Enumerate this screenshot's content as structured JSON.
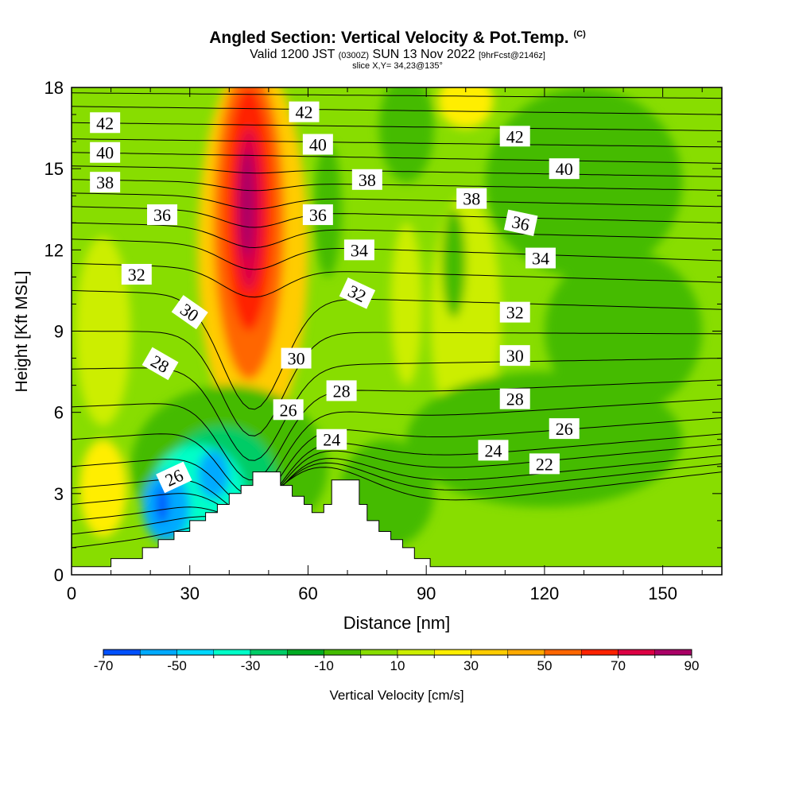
{
  "chart_data": {
    "type": "heatmap",
    "title": "Angled Section: Vertical Velocity & Pot.Temp.",
    "title_mark": "(C)",
    "subtitle": {
      "prefix": "Valid 1200 JST",
      "utc": "(0300Z)",
      "date": "SUN 13 Nov 2022",
      "forecast": "[9hrFcst@2146z]"
    },
    "slice_label": "slice X,Y= 34,23@135°",
    "xlabel": "Distance [nm]",
    "ylabel": "Height [Kft MSL]",
    "xlim": [
      0,
      165
    ],
    "ylim": [
      0,
      18
    ],
    "x_ticks": [
      0,
      30,
      60,
      90,
      120,
      150
    ],
    "y_ticks": [
      0,
      3,
      6,
      9,
      12,
      15,
      18
    ],
    "colorbar": {
      "label": "Vertical Velocity [cm/s]",
      "tick_labels": [
        -70,
        -50,
        -30,
        -10,
        10,
        30,
        50,
        70,
        90
      ],
      "bounds": [
        -70,
        -60,
        -50,
        -40,
        -30,
        -20,
        -10,
        0,
        10,
        20,
        30,
        40,
        50,
        60,
        70,
        80,
        90
      ],
      "colors": [
        "#0000ff",
        "#0050ff",
        "#00aaff",
        "#00d8ff",
        "#00ffc8",
        "#00cc66",
        "#00aa22",
        "#44bb00",
        "#88dd00",
        "#ccee00",
        "#ffee00",
        "#ffcc00",
        "#ffaa00",
        "#ff6600",
        "#ff2200",
        "#dd0044",
        "#aa0066",
        "#6600aa"
      ]
    },
    "terrain_profile": [
      [
        0,
        0.3
      ],
      [
        10,
        0.3
      ],
      [
        10,
        0.6
      ],
      [
        18,
        0.6
      ],
      [
        18,
        1
      ],
      [
        22,
        1
      ],
      [
        22,
        1.3
      ],
      [
        26,
        1.3
      ],
      [
        26,
        1.6
      ],
      [
        30,
        1.6
      ],
      [
        30,
        2
      ],
      [
        34,
        2
      ],
      [
        34,
        2.3
      ],
      [
        37,
        2.3
      ],
      [
        37,
        2.6
      ],
      [
        40,
        2.6
      ],
      [
        40,
        3
      ],
      [
        43,
        3
      ],
      [
        43,
        3.3
      ],
      [
        46,
        3.3
      ],
      [
        46,
        3.8
      ],
      [
        53,
        3.8
      ],
      [
        53,
        3.3
      ],
      [
        56,
        3.3
      ],
      [
        56,
        2.9
      ],
      [
        59,
        2.9
      ],
      [
        59,
        2.6
      ],
      [
        61,
        2.6
      ],
      [
        61,
        2.3
      ],
      [
        64,
        2.3
      ],
      [
        64,
        2.6
      ],
      [
        66,
        2.6
      ],
      [
        66,
        3.5
      ],
      [
        73,
        3.5
      ],
      [
        73,
        2.6
      ],
      [
        75,
        2.6
      ],
      [
        75,
        2
      ],
      [
        78,
        2
      ],
      [
        78,
        1.6
      ],
      [
        81,
        1.6
      ],
      [
        81,
        1.3
      ],
      [
        84,
        1.3
      ],
      [
        84,
        1
      ],
      [
        87,
        1
      ],
      [
        87,
        0.6
      ],
      [
        91,
        0.6
      ],
      [
        91,
        0.3
      ],
      [
        165,
        0.3
      ]
    ],
    "velocity_field": [
      {
        "x": 46,
        "y": 12,
        "rx": 14,
        "ry": 7,
        "value": 30
      },
      {
        "x": 45,
        "y": 13,
        "rx": 9,
        "ry": 5.8,
        "value": 50
      },
      {
        "x": 45,
        "y": 13.5,
        "rx": 6,
        "ry": 4.5,
        "value": 60
      },
      {
        "x": 45,
        "y": 13.5,
        "rx": 3.5,
        "ry": 3,
        "value": 70
      },
      {
        "x": 44.5,
        "y": 13.7,
        "rx": 1.8,
        "ry": 2,
        "value": 85
      },
      {
        "x": 8,
        "y": 9,
        "rx": 7,
        "ry": 3.5,
        "value": 15
      },
      {
        "x": 8,
        "y": 3.2,
        "rx": 6,
        "ry": 1.8,
        "value": 25
      },
      {
        "x": 100,
        "y": 9.5,
        "rx": 9,
        "ry": 4.5,
        "value": 15
      },
      {
        "x": 100,
        "y": 17.5,
        "rx": 7,
        "ry": 1,
        "value": 20
      },
      {
        "x": 85,
        "y": 10,
        "rx": 4,
        "ry": 3,
        "value": 12
      },
      {
        "x": 85,
        "y": 16.5,
        "rx": 7,
        "ry": 2,
        "value": -5
      },
      {
        "x": 65,
        "y": 13.5,
        "rx": 3.5,
        "ry": 2.5,
        "value": -5
      },
      {
        "x": 97,
        "y": 11.5,
        "rx": 3,
        "ry": 2,
        "value": -5
      },
      {
        "x": 130,
        "y": 14.5,
        "rx": 25,
        "ry": 3.5,
        "value": -3
      },
      {
        "x": 140,
        "y": 9,
        "rx": 20,
        "ry": 3,
        "value": -3
      },
      {
        "x": 120,
        "y": 5,
        "rx": 35,
        "ry": 2.5,
        "value": -3
      },
      {
        "x": 80,
        "y": 3,
        "rx": 12,
        "ry": 2,
        "value": -3
      },
      {
        "x": 40,
        "y": 4,
        "rx": 25,
        "ry": 3,
        "value": -10
      },
      {
        "x": 38,
        "y": 3.5,
        "rx": 14,
        "ry": 2,
        "value": -25
      },
      {
        "x": 32,
        "y": 3,
        "rx": 12,
        "ry": 1.8,
        "value": -40
      },
      {
        "x": 24,
        "y": 2.5,
        "rx": 6,
        "ry": 1.3,
        "value": -55
      },
      {
        "x": 36,
        "y": 3.7,
        "rx": 4,
        "ry": 0.9,
        "value": -55
      },
      {
        "x": 23,
        "y": 2.6,
        "rx": 1.5,
        "ry": 0.7,
        "value": -65
      }
    ],
    "isentropes": [
      {
        "level": 22,
        "y_left": 1,
        "y_right": 3.8
      },
      {
        "level": 23,
        "y_left": 1.5,
        "y_right": 4.1
      },
      {
        "level": 24,
        "y_left": 2.0,
        "y_right": 4.4
      },
      {
        "level": 25,
        "y_left": 2.6,
        "y_right": 4.8
      },
      {
        "level": 26,
        "y_left": 3.2,
        "y_right": 5.2
      },
      {
        "level": 27,
        "y_left": 4.0,
        "y_right": 5.8
      },
      {
        "level": 28,
        "y_left": 5.0,
        "y_right": 6.5
      },
      {
        "level": 29,
        "y_left": 6.2,
        "y_right": 7.2
      },
      {
        "level": 30,
        "y_left": 7.6,
        "y_right": 8.0
      },
      {
        "level": 31,
        "y_left": 9.0,
        "y_right": 8.9
      },
      {
        "level": 32,
        "y_left": 10.5,
        "y_right": 9.8
      },
      {
        "level": 33,
        "y_left": 11.5,
        "y_right": 10.8
      },
      {
        "level": 34,
        "y_left": 12.4,
        "y_right": 11.6
      },
      {
        "level": 35,
        "y_left": 13.0,
        "y_right": 12.4
      },
      {
        "level": 36,
        "y_left": 13.6,
        "y_right": 13.0
      },
      {
        "level": 37,
        "y_left": 14.1,
        "y_right": 13.6
      },
      {
        "level": 38,
        "y_left": 14.6,
        "y_right": 14.2
      },
      {
        "level": 39,
        "y_left": 15.1,
        "y_right": 14.7
      },
      {
        "level": 40,
        "y_left": 15.6,
        "y_right": 15.2
      },
      {
        "level": 41,
        "y_left": 16.1,
        "y_right": 15.8
      },
      {
        "level": 42,
        "y_left": 16.7,
        "y_right": 16.4
      },
      {
        "level": 43,
        "y_left": 17.3,
        "y_right": 17.0
      },
      {
        "level": 44,
        "y_left": 17.8,
        "y_right": 17.6
      }
    ],
    "contour_labels": [
      {
        "text": "42",
        "x": 8.5,
        "y": 16.7,
        "angle": 0
      },
      {
        "text": "40",
        "x": 8.5,
        "y": 15.6,
        "angle": 0
      },
      {
        "text": "38",
        "x": 8.5,
        "y": 14.5,
        "angle": 0
      },
      {
        "text": "36",
        "x": 23,
        "y": 13.3,
        "angle": 0
      },
      {
        "text": "32",
        "x": 16.5,
        "y": 11.1,
        "angle": 0
      },
      {
        "text": "30",
        "x": 30,
        "y": 9.7,
        "angle": 35
      },
      {
        "text": "28",
        "x": 22.5,
        "y": 7.8,
        "angle": 30
      },
      {
        "text": "26",
        "x": 26,
        "y": 3.6,
        "angle": -25
      },
      {
        "text": "42",
        "x": 59,
        "y": 17.1,
        "angle": 0
      },
      {
        "text": "40",
        "x": 62.5,
        "y": 15.9,
        "angle": 0
      },
      {
        "text": "38",
        "x": 75,
        "y": 14.6,
        "angle": 0
      },
      {
        "text": "36",
        "x": 62.5,
        "y": 13.3,
        "angle": 0
      },
      {
        "text": "34",
        "x": 73,
        "y": 12.0,
        "angle": 0
      },
      {
        "text": "32",
        "x": 72.5,
        "y": 10.4,
        "angle": 25
      },
      {
        "text": "30",
        "x": 57,
        "y": 8.0,
        "angle": 0
      },
      {
        "text": "28",
        "x": 68.5,
        "y": 6.8,
        "angle": 0
      },
      {
        "text": "26",
        "x": 55,
        "y": 6.1,
        "angle": 0
      },
      {
        "text": "24",
        "x": 66,
        "y": 5.0,
        "angle": 0
      },
      {
        "text": "42",
        "x": 112.5,
        "y": 16.2,
        "angle": 0
      },
      {
        "text": "40",
        "x": 125,
        "y": 15.0,
        "angle": 0
      },
      {
        "text": "38",
        "x": 101.5,
        "y": 13.9,
        "angle": 0
      },
      {
        "text": "36",
        "x": 114,
        "y": 13.0,
        "angle": 12
      },
      {
        "text": "34",
        "x": 119,
        "y": 11.7,
        "angle": 0
      },
      {
        "text": "32",
        "x": 112.5,
        "y": 9.7,
        "angle": 0
      },
      {
        "text": "30",
        "x": 112.5,
        "y": 8.1,
        "angle": 0
      },
      {
        "text": "28",
        "x": 112.5,
        "y": 6.5,
        "angle": 0
      },
      {
        "text": "26",
        "x": 125,
        "y": 5.4,
        "angle": 0
      },
      {
        "text": "24",
        "x": 107,
        "y": 4.6,
        "angle": 0
      },
      {
        "text": "22",
        "x": 120,
        "y": 4.1,
        "angle": 0
      }
    ]
  }
}
